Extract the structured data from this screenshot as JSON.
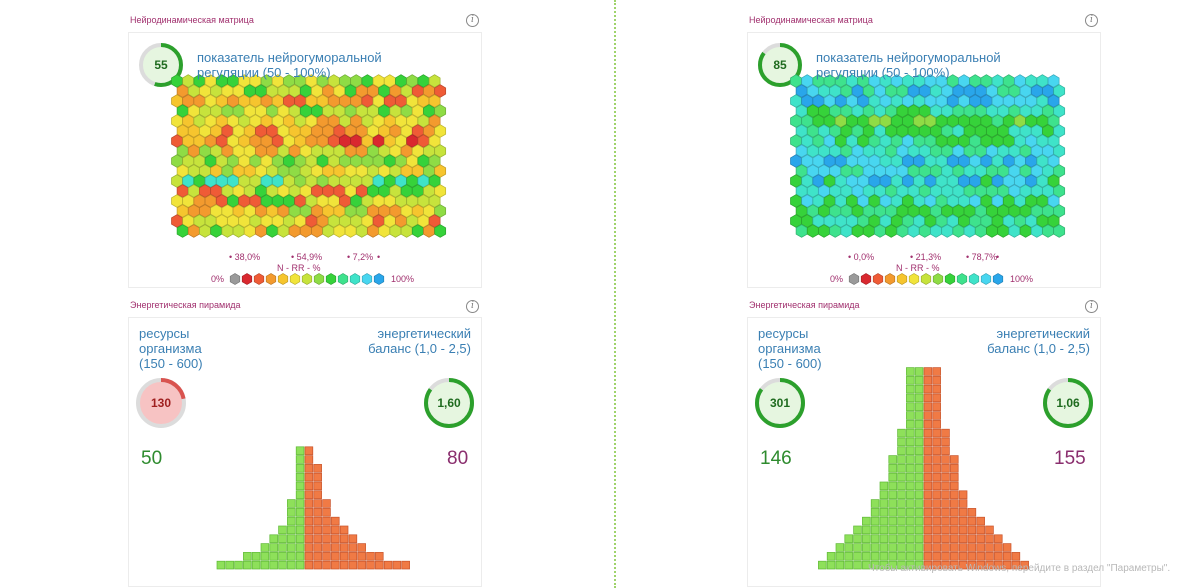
{
  "colors": {
    "grey": "#9a9a9a",
    "red": "#d9282f",
    "redorange": "#ef5b36",
    "orange": "#f39a2e",
    "yelloworange": "#f6c52e",
    "yellow": "#f1e43a",
    "yellowgreen": "#c7e33c",
    "lightgreen": "#8fdc45",
    "green": "#36d23a",
    "greencyan": "#3ee28d",
    "cyan": "#3fe3c9",
    "lightblue": "#48d6f0",
    "blue": "#29a6ea",
    "pyr_green": "#8ee05a",
    "pyr_orange": "#f07a45",
    "title_color": "#a1306e",
    "label_blue": "#3a7fb3",
    "res_green": "#2e8b2e",
    "bal_purple": "#8a2e6e"
  },
  "chart_data": [
    {
      "type": "heatmap",
      "title": "Нейродинамическая матрица",
      "indicator": {
        "value": "55",
        "fraction": 0.55,
        "label": "показатель нейрогуморальной регуляции (50 - 100%)"
      },
      "stats": [
        "38,0%",
        "54,9%",
        "7,2%"
      ],
      "legend": {
        "left": "0%",
        "right": "100%",
        "axis": "N  -  RR  -  %"
      },
      "grid": {
        "rows": 16,
        "cols": 24,
        "seed": 7,
        "row_palettes": [
          [
            "lightgreen",
            "yellowgreen",
            "green",
            "yellow"
          ],
          [
            "yellow",
            "orange",
            "redorange",
            "green",
            "yellowgreen"
          ],
          [
            "redorange",
            "orange",
            "yelloworange",
            "yellow"
          ],
          [
            "yellow",
            "yellowgreen",
            "lightgreen",
            "green"
          ],
          [
            "yelloworange",
            "yellow",
            "orange",
            "yellowgreen"
          ],
          [
            "orange",
            "redorange",
            "yellow",
            "yelloworange"
          ],
          [
            "yellow",
            "orange",
            "red",
            "redorange",
            "yelloworange"
          ],
          [
            "yellowgreen",
            "yellow",
            "lightgreen",
            "orange"
          ],
          [
            "lightgreen",
            "green",
            "yellowgreen",
            "yellow"
          ],
          [
            "yellow",
            "yellowgreen",
            "yelloworange",
            "lightgreen"
          ],
          [
            "green",
            "lightgreen",
            "cyan",
            "yellowgreen"
          ],
          [
            "yellowgreen",
            "yellow",
            "green",
            "redorange"
          ],
          [
            "yellow",
            "orange",
            "redorange",
            "yellowgreen",
            "green"
          ],
          [
            "orange",
            "yelloworange",
            "yellow",
            "lightgreen"
          ],
          [
            "redorange",
            "orange",
            "yellow",
            "yellowgreen"
          ],
          [
            "yellowgreen",
            "yellow",
            "orange",
            "green"
          ]
        ]
      }
    },
    {
      "type": "heatmap",
      "title": "Нейродинамическая матрица",
      "indicator": {
        "value": "85",
        "fraction": 0.85,
        "label": "показатель нейрогуморальной регуляции (50 - 100%)"
      },
      "stats": [
        "0,0%",
        "21,3%",
        "78,7%"
      ],
      "legend": {
        "left": "0%",
        "right": "100%",
        "axis": "N  -  RR  -  %"
      },
      "grid": {
        "rows": 16,
        "cols": 24,
        "seed": 19,
        "row_palettes": [
          [
            "cyan",
            "lightblue",
            "greencyan"
          ],
          [
            "lightblue",
            "cyan",
            "blue",
            "greencyan"
          ],
          [
            "lightblue",
            "blue",
            "cyan"
          ],
          [
            "green",
            "greencyan",
            "cyan"
          ],
          [
            "green",
            "green",
            "greencyan",
            "lightgreen"
          ],
          [
            "green",
            "cyan",
            "greencyan",
            "green"
          ],
          [
            "greencyan",
            "green",
            "cyan",
            "lightblue"
          ],
          [
            "lightblue",
            "cyan",
            "greencyan"
          ],
          [
            "lightblue",
            "cyan",
            "blue"
          ],
          [
            "cyan",
            "lightblue",
            "greencyan"
          ],
          [
            "lightblue",
            "cyan",
            "blue",
            "green"
          ],
          [
            "greencyan",
            "cyan",
            "lightblue"
          ],
          [
            "cyan",
            "greencyan",
            "lightblue",
            "green"
          ],
          [
            "green",
            "greencyan",
            "green"
          ],
          [
            "green",
            "green",
            "greencyan",
            "cyan"
          ],
          [
            "cyan",
            "greencyan",
            "green"
          ]
        ]
      }
    },
    {
      "type": "bar",
      "title": "Энергетическая пирамида",
      "left_label": "ресурсы организма (150 - 600)",
      "right_label": "энергетический баланс (1,0 - 2,5)",
      "resources": {
        "value": "130",
        "fraction": 0.22,
        "status": "low"
      },
      "balance": {
        "value": "1,60",
        "fraction": 0.85,
        "status": "ok"
      },
      "green_total": "50",
      "orange_total": "80",
      "green_rows": [
        1,
        1,
        1,
        1,
        1,
        1,
        2,
        2,
        2,
        3,
        4,
        5,
        7,
        10
      ],
      "orange_rows": [
        1,
        1,
        2,
        2,
        2,
        2,
        3,
        3,
        4,
        5,
        6,
        7,
        9,
        12
      ]
    },
    {
      "type": "bar",
      "title": "Энергетическая пирамида",
      "left_label": "ресурсы организма (150 - 600)",
      "right_label": "энергетический баланс (1,0 - 2,5)",
      "resources": {
        "value": "301",
        "fraction": 0.85,
        "status": "ok"
      },
      "balance": {
        "value": "1,06",
        "fraction": 0.85,
        "status": "ok"
      },
      "green_total": "146",
      "orange_total": "155",
      "green_rows": [
        2,
        2,
        2,
        2,
        2,
        2,
        2,
        3,
        3,
        3,
        4,
        4,
        4,
        5,
        5,
        6,
        6,
        7,
        8,
        9,
        10,
        11,
        12
      ],
      "orange_rows": [
        2,
        2,
        2,
        2,
        2,
        2,
        2,
        3,
        3,
        3,
        4,
        4,
        4,
        4,
        5,
        5,
        6,
        7,
        8,
        9,
        10,
        11,
        12
      ]
    }
  ],
  "legend_colors": [
    "grey",
    "red",
    "redorange",
    "orange",
    "yelloworange",
    "yellow",
    "yellowgreen",
    "lightgreen",
    "green",
    "greencyan",
    "cyan",
    "lightblue",
    "blue"
  ],
  "watermark": "Чтобы активировать Windows, перейдите в раздел \"Параметры\"."
}
